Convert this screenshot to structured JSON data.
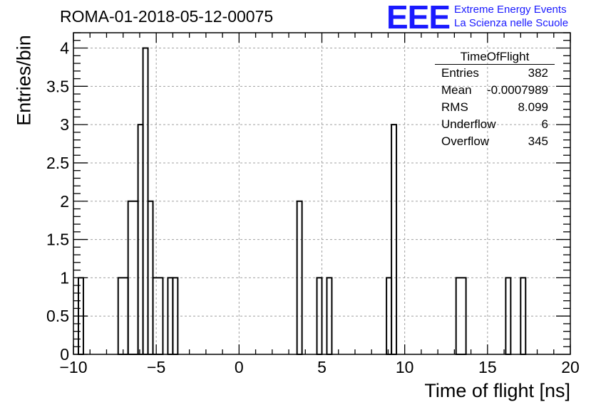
{
  "title": "ROMA-01-2018-05-12-00075",
  "logo": {
    "mark": "EEE",
    "line1": "Extreme Energy Events",
    "line2": "La Scienza nelle Scuole",
    "color": "#1a1aff"
  },
  "stats_box": {
    "title": "TimeOfFlight",
    "rows": [
      {
        "key": "Entries",
        "value": "382"
      },
      {
        "key": "Mean",
        "value": "-0.0007989"
      },
      {
        "key": "RMS",
        "value": "8.099"
      },
      {
        "key": "Underflow",
        "value": "6"
      },
      {
        "key": "Overflow",
        "value": "345"
      }
    ]
  },
  "chart_data": {
    "type": "bar",
    "style": "step-histogram",
    "xlabel": "Time of flight [ns]",
    "ylabel": "Entries/bin",
    "xlim": [
      -10,
      20
    ],
    "ylim": [
      0,
      4.2
    ],
    "grid": true,
    "bin_width": 0.3,
    "xticks": [
      -10,
      -5,
      0,
      5,
      10,
      15,
      20
    ],
    "xtick_labels": [
      "−10",
      "−5",
      "0",
      "5",
      "10",
      "15",
      "20"
    ],
    "yticks": [
      0,
      0.5,
      1,
      1.5,
      2,
      2.5,
      3,
      3.5,
      4
    ],
    "ytick_labels": [
      "0",
      "0.5",
      "1",
      "1.5",
      "2",
      "2.5",
      "3",
      "3.5",
      "4"
    ],
    "bins": [
      {
        "x0": -9.7,
        "x1": -9.4,
        "y": 1
      },
      {
        "x0": -7.3,
        "x1": -6.7,
        "y": 1
      },
      {
        "x0": -6.7,
        "x1": -6.1,
        "y": 2
      },
      {
        "x0": -6.1,
        "x1": -5.8,
        "y": 3
      },
      {
        "x0": -5.8,
        "x1": -5.5,
        "y": 4
      },
      {
        "x0": -5.5,
        "x1": -5.2,
        "y": 2
      },
      {
        "x0": -5.2,
        "x1": -4.6,
        "y": 1
      },
      {
        "x0": -4.3,
        "x1": -4.0,
        "y": 1
      },
      {
        "x0": -4.0,
        "x1": -3.7,
        "y": 1
      },
      {
        "x0": 3.5,
        "x1": 3.8,
        "y": 2
      },
      {
        "x0": 4.7,
        "x1": 5.0,
        "y": 1
      },
      {
        "x0": 5.3,
        "x1": 5.6,
        "y": 1
      },
      {
        "x0": 8.9,
        "x1": 9.2,
        "y": 1
      },
      {
        "x0": 9.2,
        "x1": 9.5,
        "y": 3
      },
      {
        "x0": 13.1,
        "x1": 13.7,
        "y": 1
      },
      {
        "x0": 16.1,
        "x1": 16.4,
        "y": 1
      },
      {
        "x0": 17.0,
        "x1": 17.3,
        "y": 1
      }
    ]
  }
}
